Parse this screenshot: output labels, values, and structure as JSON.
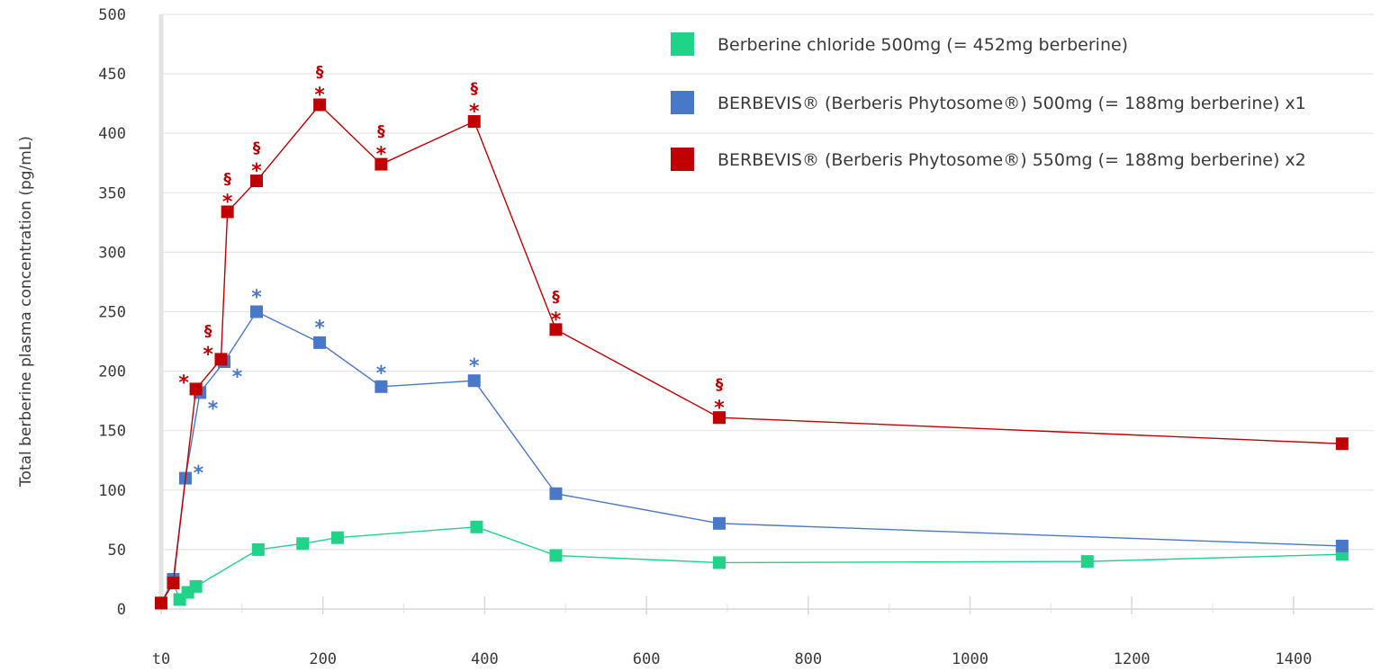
{
  "chart_data": {
    "type": "line",
    "title": "",
    "xlabel": "",
    "ylabel": "Total berberine plasma concentration (pg/mL)",
    "xlim": [
      0,
      1500
    ],
    "ylim": [
      0,
      500
    ],
    "x_ticks": [
      0,
      200,
      400,
      600,
      800,
      1000,
      1200,
      1400
    ],
    "x_tick_labels": [
      "t0",
      "200",
      "400",
      "600",
      "800",
      "1000",
      "1200",
      "1400"
    ],
    "y_ticks": [
      0,
      50,
      100,
      150,
      200,
      250,
      300,
      350,
      400,
      450,
      500
    ],
    "y_tick_labels": [
      "0",
      "50",
      "100",
      "150",
      "200",
      "250",
      "300",
      "350",
      "400",
      "450",
      "500"
    ],
    "grid": "horizontal",
    "legend_position": "top-right",
    "series": [
      {
        "name": "Berberine chloride 500mg (= 452mg berberine)",
        "color": "#1fd388",
        "x": [
          0,
          15,
          23,
          33,
          43,
          120,
          175,
          218,
          390,
          488,
          690,
          1145,
          1460
        ],
        "y": [
          5,
          22,
          8,
          14,
          19,
          50,
          55,
          60,
          69,
          45,
          39,
          40,
          46
        ]
      },
      {
        "name": "BERBEVIS® (Berberis Phytosome®) 500mg (= 188mg berberine) x1",
        "color": "#4a78c9",
        "x": [
          0,
          15,
          30,
          48,
          78,
          118,
          196,
          272,
          387,
          488,
          690,
          1460
        ],
        "y": [
          5,
          25,
          110,
          182,
          208,
          250,
          224,
          187,
          192,
          97,
          72,
          53
        ]
      },
      {
        "name": "BERBEVIS® (Berberis Phytosome®) 550mg (= 188mg berberine) x2",
        "color": "#c00000",
        "x": [
          0,
          15,
          43,
          74,
          82,
          118,
          196,
          272,
          387,
          488,
          690,
          1460
        ],
        "y": [
          5,
          22,
          185,
          210,
          334,
          360,
          424,
          374,
          410,
          235,
          161,
          139
        ]
      }
    ],
    "annotations": [
      {
        "series": 1,
        "text": "*",
        "x": 46,
        "y": 118
      },
      {
        "series": 1,
        "text": "*",
        "x": 64,
        "y": 172
      },
      {
        "series": 1,
        "text": "*",
        "x": 94,
        "y": 199
      },
      {
        "series": 1,
        "text": "*",
        "x": 118,
        "y": 266
      },
      {
        "series": 1,
        "text": "*",
        "x": 196,
        "y": 240
      },
      {
        "series": 1,
        "text": "*",
        "x": 272,
        "y": 202
      },
      {
        "series": 1,
        "text": "*",
        "x": 387,
        "y": 208
      },
      {
        "series": 2,
        "text": "*",
        "x": 28,
        "y": 194
      },
      {
        "series": 2,
        "text": "*",
        "x": 58,
        "y": 218
      },
      {
        "series": 2,
        "text": "§",
        "x": 58,
        "y": 234
      },
      {
        "series": 2,
        "text": "*",
        "x": 82,
        "y": 346
      },
      {
        "series": 2,
        "text": "§",
        "x": 82,
        "y": 362
      },
      {
        "series": 2,
        "text": "*",
        "x": 118,
        "y": 372
      },
      {
        "series": 2,
        "text": "§",
        "x": 118,
        "y": 388
      },
      {
        "series": 2,
        "text": "*",
        "x": 196,
        "y": 436
      },
      {
        "series": 2,
        "text": "§",
        "x": 196,
        "y": 452
      },
      {
        "series": 2,
        "text": "*",
        "x": 272,
        "y": 386
      },
      {
        "series": 2,
        "text": "§",
        "x": 272,
        "y": 402
      },
      {
        "series": 2,
        "text": "*",
        "x": 387,
        "y": 422
      },
      {
        "series": 2,
        "text": "§",
        "x": 387,
        "y": 438
      },
      {
        "series": 2,
        "text": "*",
        "x": 488,
        "y": 247
      },
      {
        "series": 2,
        "text": "§",
        "x": 488,
        "y": 263
      },
      {
        "series": 2,
        "text": "*",
        "x": 690,
        "y": 173
      },
      {
        "series": 2,
        "text": "§",
        "x": 690,
        "y": 189
      }
    ]
  }
}
